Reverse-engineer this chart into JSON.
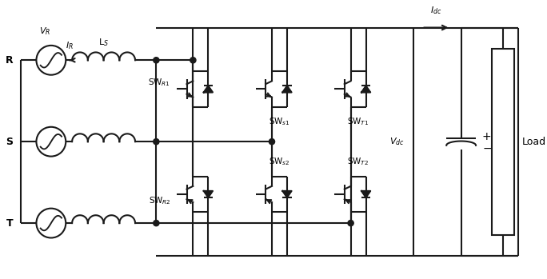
{
  "bg_color": "#ffffff",
  "line_color": "#1a1a1a",
  "line_width": 1.5,
  "fig_width": 6.84,
  "fig_height": 3.49,
  "labels": {
    "VR": "$V_R$",
    "IR": "$I_R$",
    "R": "R",
    "S": "S",
    "T": "T",
    "LS": "L$_S$",
    "SWR1": "SW$_{R1}$",
    "SWR2": "SW$_{R2}$",
    "SWS1": "SW$_{s1}$",
    "SWS2": "SW$_{s2}$",
    "SWT1": "SW$_{T1}$",
    "SWT2": "SW$_{T2}$",
    "Vdc": "$V_{dc}$",
    "C": "C",
    "Idc": "$I_{dc}$",
    "Load": "Load"
  }
}
